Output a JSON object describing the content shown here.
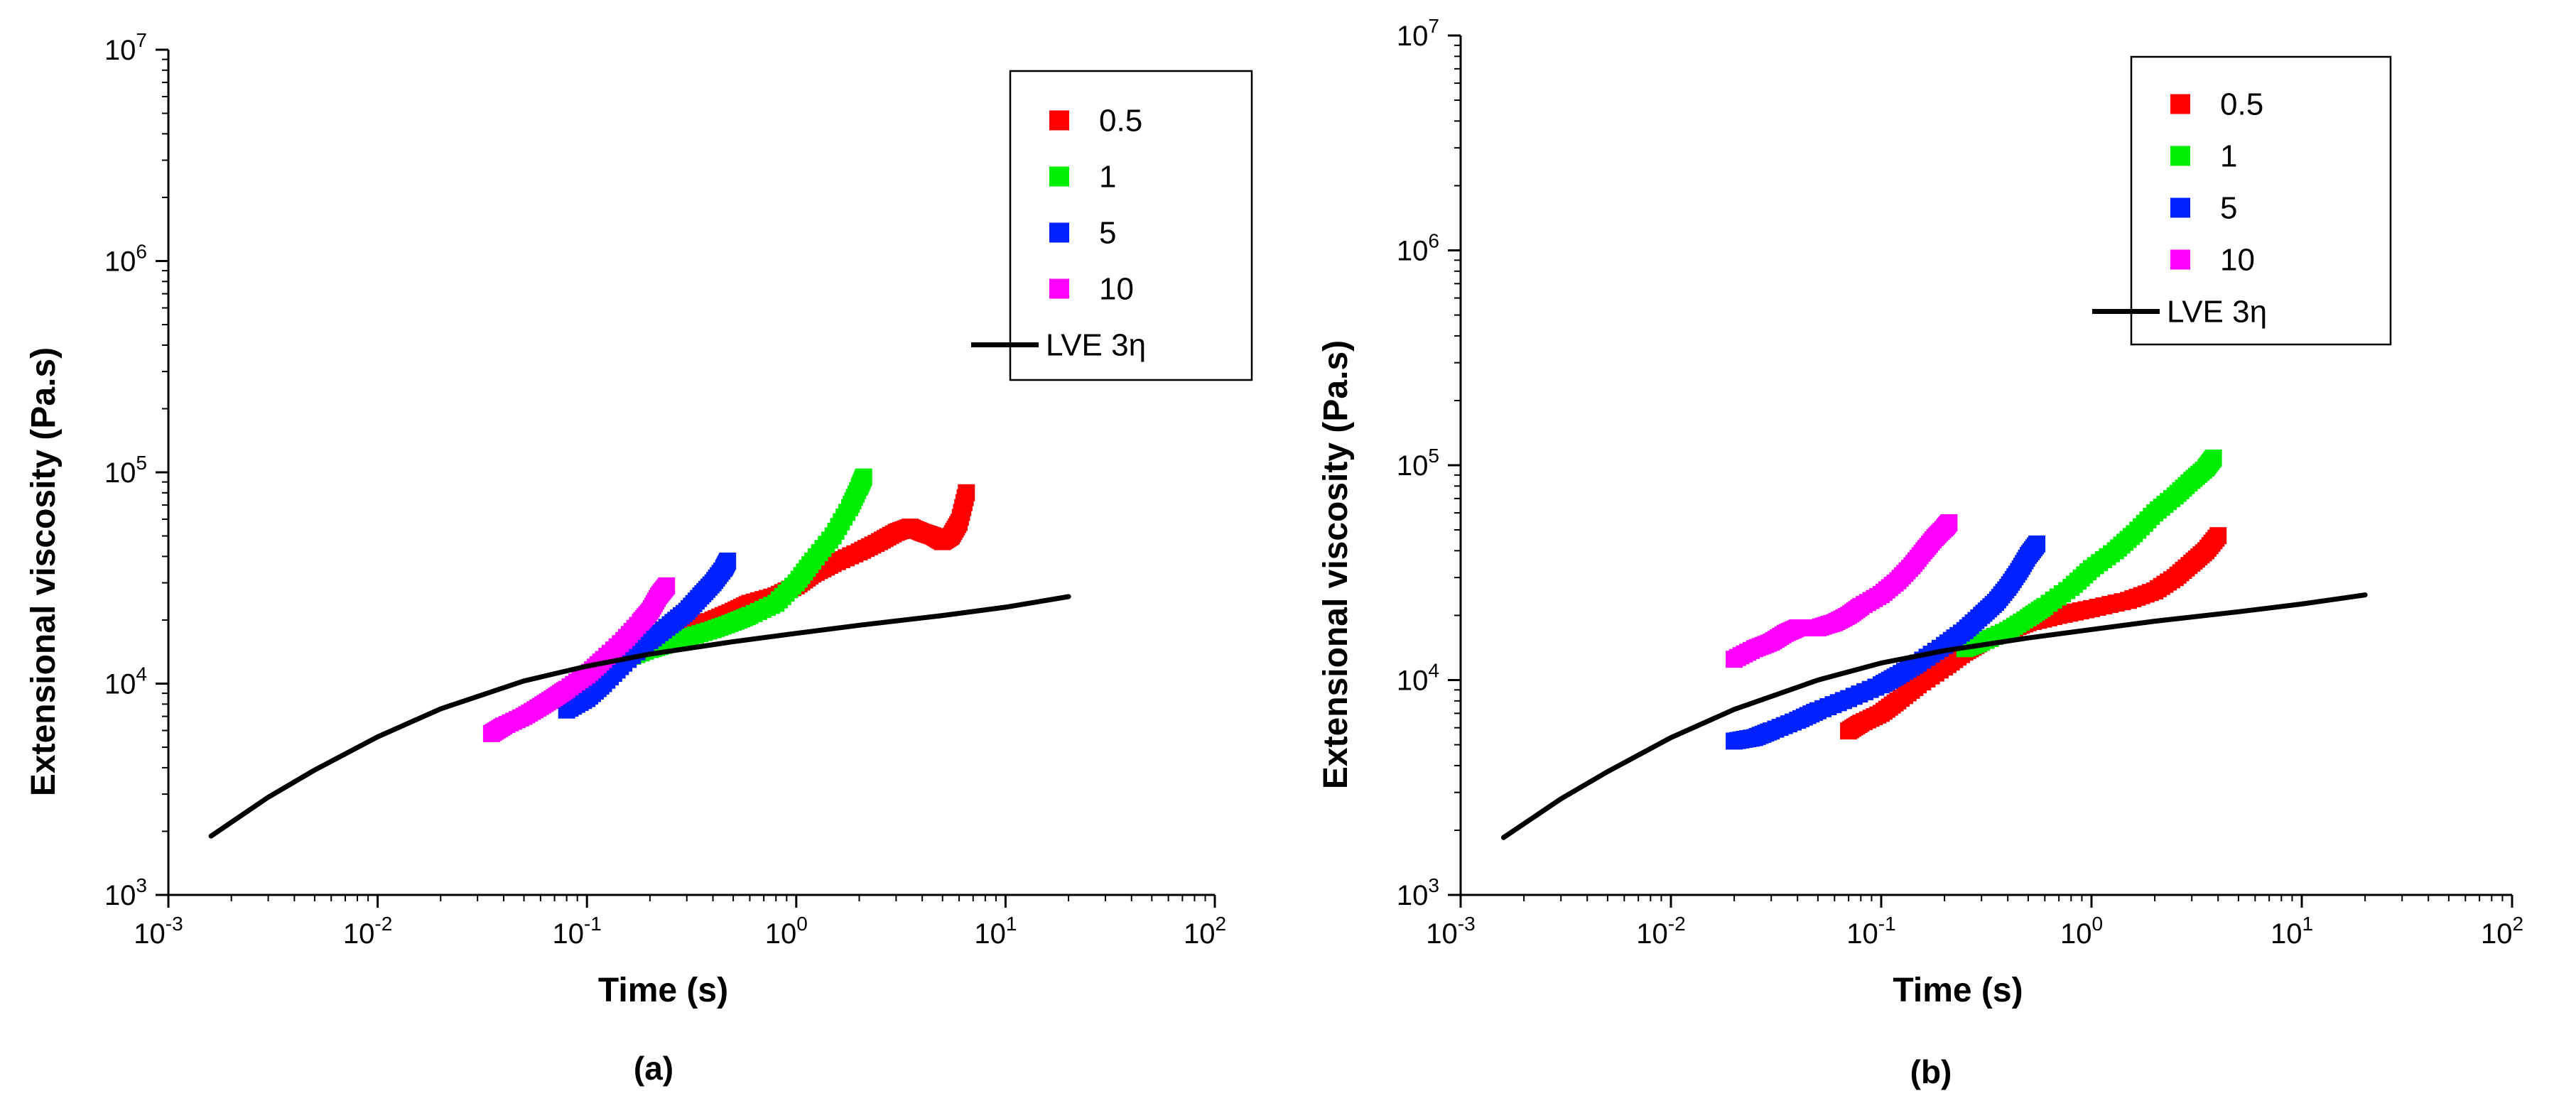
{
  "chart_data": [
    {
      "type": "scatter",
      "panel_label": "(a)",
      "xlabel": "Time (s)",
      "ylabel": "Extensional viscosity (Pa.s)",
      "xscale": "log",
      "yscale": "log",
      "xlim": [
        0.001,
        100
      ],
      "ylim": [
        1000,
        10000000
      ],
      "x_tick_exponents": [
        "-3",
        "-2",
        "-1",
        "0",
        "1",
        "2"
      ],
      "y_tick_exponents": [
        "3",
        "4",
        "5",
        "6",
        "7"
      ],
      "tick_base": "10",
      "legend_position": "top-right",
      "series": [
        {
          "name": "0.5",
          "color": "#ff0000",
          "marker": "square",
          "x": [
            0.3,
            0.4,
            0.5,
            0.6,
            0.8,
            1.0,
            1.2,
            1.5,
            2.0,
            2.5,
            3.0,
            3.5,
            4.0,
            4.5,
            5.0,
            5.5,
            6.0,
            6.5
          ],
          "y": [
            18000,
            20000,
            22000,
            24000,
            26000,
            29000,
            33000,
            37000,
            42000,
            47000,
            52000,
            55000,
            52000,
            50000,
            47000,
            50000,
            58000,
            80000
          ]
        },
        {
          "name": "1",
          "color": "#00ee00",
          "marker": "square",
          "x": [
            0.15,
            0.2,
            0.25,
            0.3,
            0.4,
            0.5,
            0.6,
            0.8,
            1.0,
            1.2,
            1.5,
            1.8,
            2.0,
            2.1
          ],
          "y": [
            13000,
            14500,
            15500,
            16500,
            18000,
            19500,
            21000,
            24000,
            30000,
            38000,
            50000,
            68000,
            85000,
            95000
          ]
        },
        {
          "name": "5",
          "color": "#0022ff",
          "marker": "square",
          "x": [
            0.08,
            0.1,
            0.12,
            0.15,
            0.2,
            0.25,
            0.3,
            0.35,
            0.4,
            0.45,
            0.47
          ],
          "y": [
            7500,
            8500,
            10000,
            12500,
            16000,
            19000,
            22000,
            26000,
            30000,
            35000,
            38000
          ]
        },
        {
          "name": "10",
          "color": "#ff00ff",
          "marker": "square",
          "x": [
            0.035,
            0.04,
            0.05,
            0.06,
            0.07,
            0.08,
            0.1,
            0.12,
            0.15,
            0.18,
            0.2,
            0.22,
            0.24
          ],
          "y": [
            5800,
            6300,
            7000,
            7800,
            8600,
            9400,
            11000,
            13000,
            16000,
            19500,
            22000,
            26000,
            29000
          ]
        },
        {
          "name": "LVE 3η",
          "color": "#000000",
          "marker": "line",
          "x": [
            0.0016,
            0.003,
            0.005,
            0.01,
            0.02,
            0.05,
            0.1,
            0.2,
            0.5,
            1,
            2,
            5,
            10,
            20
          ],
          "y": [
            1900,
            2900,
            3900,
            5600,
            7600,
            10300,
            12100,
            13800,
            15800,
            17300,
            18900,
            21000,
            23000,
            25800
          ]
        }
      ]
    },
    {
      "type": "scatter",
      "panel_label": "(b)",
      "xlabel": "Time (s)",
      "ylabel": "Extensional viscosity (Pa.s)",
      "xscale": "log",
      "yscale": "log",
      "xlim": [
        0.001,
        100
      ],
      "ylim": [
        1000,
        10000000
      ],
      "x_tick_exponents": [
        "-3",
        "-2",
        "-1",
        "0",
        "1",
        "2"
      ],
      "y_tick_exponents": [
        "3",
        "4",
        "5",
        "6",
        "7"
      ],
      "tick_base": "10",
      "legend_position": "top-right",
      "series": [
        {
          "name": "0.5",
          "color": "#ff0000",
          "marker": "square",
          "x": [
            0.07,
            0.08,
            0.1,
            0.12,
            0.15,
            0.2,
            0.25,
            0.3,
            0.4,
            0.5,
            0.7,
            1.0,
            1.5,
            2.0,
            2.5,
            3.0,
            3.5,
            4.0
          ],
          "y": [
            5800,
            6300,
            7000,
            8000,
            9500,
            11500,
            13500,
            15000,
            17000,
            18500,
            20000,
            21500,
            23500,
            26000,
            30000,
            35000,
            40000,
            47000
          ]
        },
        {
          "name": "1",
          "color": "#00ee00",
          "marker": "square",
          "x": [
            0.25,
            0.3,
            0.4,
            0.5,
            0.6,
            0.8,
            1.0,
            1.3,
            1.6,
            2.0,
            2.5,
            3.0,
            3.5,
            3.8
          ],
          "y": [
            14000,
            15000,
            17000,
            19500,
            22000,
            27000,
            33000,
            40000,
            48000,
            60000,
            72000,
            85000,
            97000,
            108000
          ]
        },
        {
          "name": "5",
          "color": "#0022ff",
          "marker": "square",
          "x": [
            0.02,
            0.025,
            0.03,
            0.04,
            0.05,
            0.07,
            0.1,
            0.12,
            0.15,
            0.2,
            0.25,
            0.3,
            0.35,
            0.4,
            0.45,
            0.5,
            0.55
          ],
          "y": [
            5200,
            5400,
            5800,
            6500,
            7200,
            8200,
            9500,
            10500,
            12000,
            14500,
            17000,
            20000,
            23000,
            27000,
            32000,
            38000,
            43000
          ]
        },
        {
          "name": "10",
          "color": "#ff00ff",
          "marker": "square",
          "x": [
            0.02,
            0.025,
            0.03,
            0.035,
            0.04,
            0.05,
            0.06,
            0.07,
            0.08,
            0.1,
            0.12,
            0.14,
            0.16,
            0.18,
            0.2,
            0.21
          ],
          "y": [
            12500,
            14000,
            15000,
            16500,
            17500,
            17500,
            18500,
            20000,
            22000,
            25000,
            29000,
            34000,
            40000,
            46000,
            51000,
            54000
          ]
        },
        {
          "name": "LVE 3η",
          "color": "#000000",
          "marker": "line",
          "x": [
            0.0016,
            0.003,
            0.005,
            0.01,
            0.02,
            0.05,
            0.1,
            0.2,
            0.5,
            1,
            2,
            5,
            10,
            20
          ],
          "y": [
            1850,
            2800,
            3750,
            5400,
            7300,
            10000,
            12000,
            13700,
            15700,
            17200,
            18800,
            20800,
            22600,
            24900
          ]
        }
      ]
    }
  ]
}
